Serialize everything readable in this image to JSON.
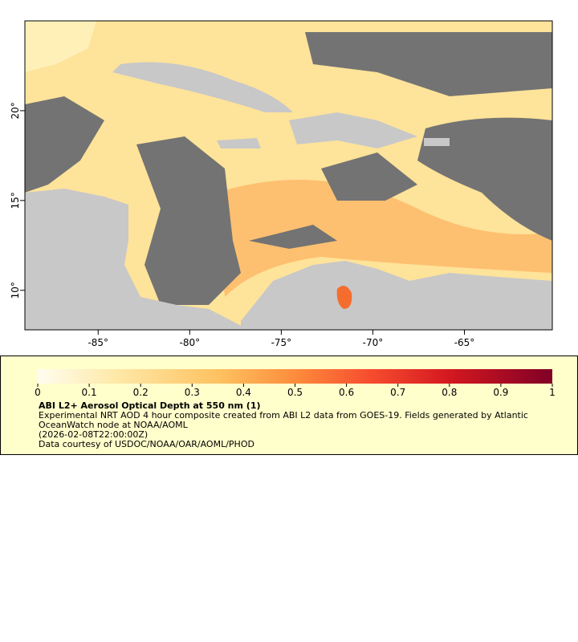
{
  "map": {
    "xlim": [
      -89,
      -60.2
    ],
    "ylim": [
      7.8,
      25
    ],
    "xticks": [
      {
        "value": -85,
        "label": "-85°"
      },
      {
        "value": -80,
        "label": "-80°"
      },
      {
        "value": -75,
        "label": "-75°"
      },
      {
        "value": -70,
        "label": "-70°"
      },
      {
        "value": -65,
        "label": "-65°"
      }
    ],
    "yticks": [
      {
        "value": 10,
        "label": "10°"
      },
      {
        "value": 15,
        "label": "15°"
      },
      {
        "value": 20,
        "label": "20°"
      }
    ]
  },
  "colorbar": {
    "lim": [
      0,
      1
    ],
    "ticks": [
      0,
      0.1,
      0.2,
      0.3,
      0.4,
      0.5,
      0.6,
      0.7,
      0.8,
      0.9,
      1
    ]
  },
  "legend": {
    "title": "ABI L2+ Aerosol Optical Depth at 550 nm (1)",
    "description": "Experimental NRT AOD 4 hour composite created from ABI L2 data from GOES-19. Fields generated by Atlantic OceanWatch node at NOAA/AOML",
    "time": "(2026-02-08T22:00:00Z)",
    "credit": "Data courtesy of USDOC/NOAA/OAR/AOML/PHOD"
  }
}
